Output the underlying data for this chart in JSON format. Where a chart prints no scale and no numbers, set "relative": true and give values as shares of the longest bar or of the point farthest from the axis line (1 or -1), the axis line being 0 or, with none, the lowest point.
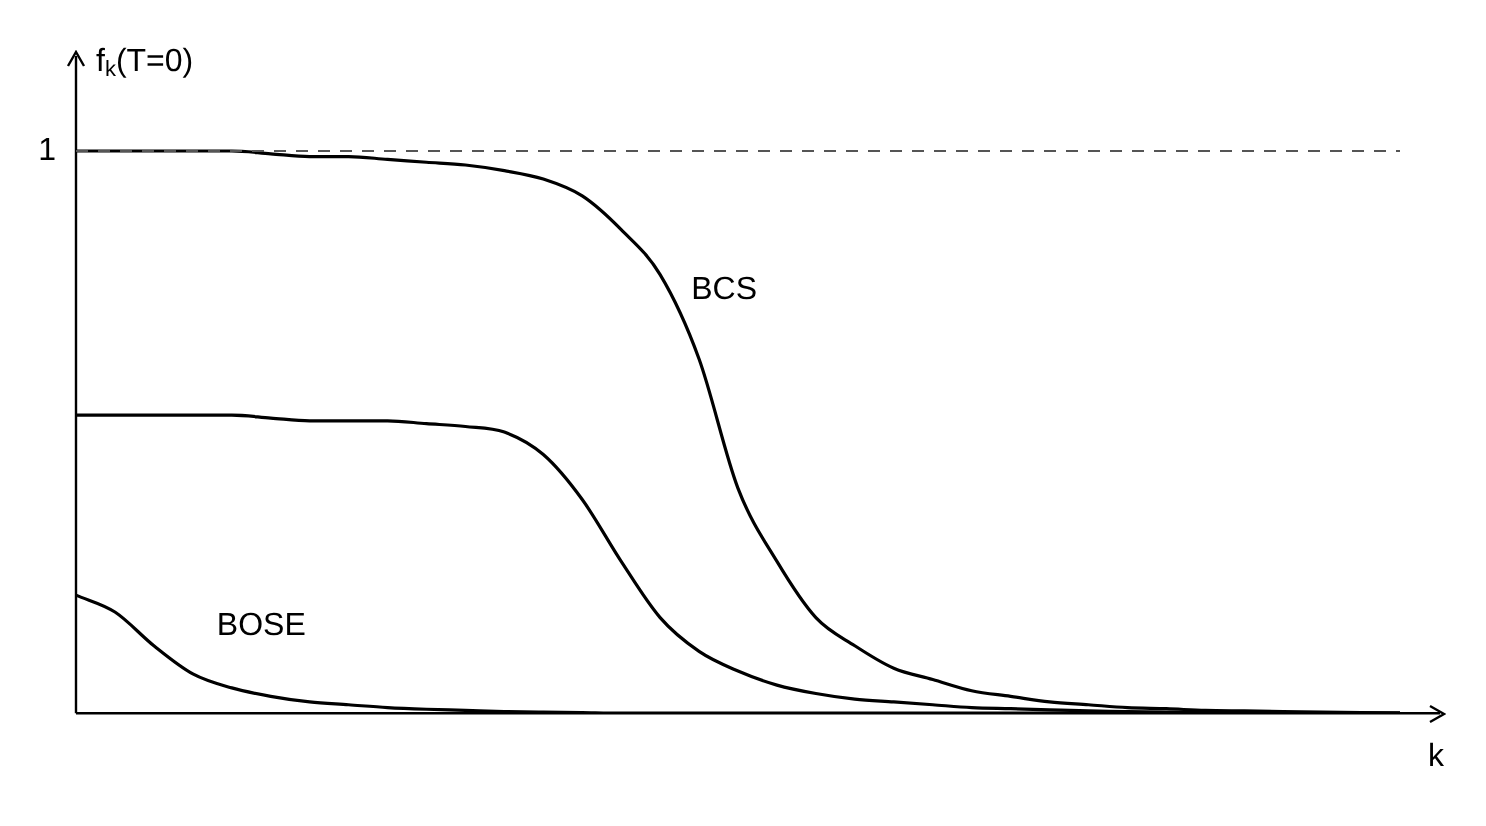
{
  "chart_data": {
    "type": "line",
    "relative": true,
    "ylabel": "f$_{k}$(T=0)",
    "xlabel": "k",
    "legend": false,
    "grid": false,
    "marker": "none",
    "line_style": "solid",
    "categories": [
      null,
      null,
      null,
      null,
      null,
      null,
      null,
      null,
      null,
      null,
      null,
      null,
      null,
      null,
      null,
      null,
      null,
      null,
      null,
      null,
      null,
      null,
      null,
      null,
      null,
      null,
      null,
      null,
      null,
      null,
      null,
      null,
      null,
      null,
      null
    ],
    "series": [
      {
        "name": "BCS",
        "color": "#000000",
        "values": [
          1,
          1,
          1,
          1,
          1,
          0.995,
          0.99,
          0.99,
          0.985,
          0.98,
          0.975,
          0.965,
          0.95,
          0.92,
          0.86,
          0.78,
          0.63,
          0.4,
          0.27,
          0.17,
          0.12,
          0.08,
          0.06,
          0.04,
          0.03,
          0.02,
          0.015,
          0.01,
          0.008,
          0.005,
          0.004,
          0.003,
          0.002,
          0.001,
          0
        ]
      },
      {
        "color": "#000000",
        "values": [
          0.53,
          0.53,
          0.53,
          0.53,
          0.53,
          0.525,
          0.52,
          0.52,
          0.52,
          0.515,
          0.51,
          0.5,
          0.46,
          0.38,
          0.27,
          0.17,
          0.11,
          0.075,
          0.05,
          0.035,
          0.025,
          0.02,
          0.015,
          0.01,
          0.008,
          0.006,
          0.004,
          0.003,
          0.002,
          0.001,
          0,
          0,
          0,
          0,
          0
        ]
      },
      {
        "name": "BOSE",
        "color": "#000000",
        "values": [
          0.21,
          0.18,
          0.12,
          0.07,
          0.045,
          0.03,
          0.02,
          0.015,
          0.01,
          0.007,
          0.005,
          0.003,
          0.002,
          0.001,
          0,
          0,
          0,
          0,
          0,
          0,
          0,
          0,
          0,
          0,
          0,
          0,
          0,
          0,
          0,
          0,
          0,
          0,
          0,
          0,
          0
        ]
      }
    ],
    "ref_lines": [
      {
        "axis": "y",
        "value": 1,
        "label": "1",
        "line_style": "dashed",
        "color": "#555555"
      }
    ]
  }
}
